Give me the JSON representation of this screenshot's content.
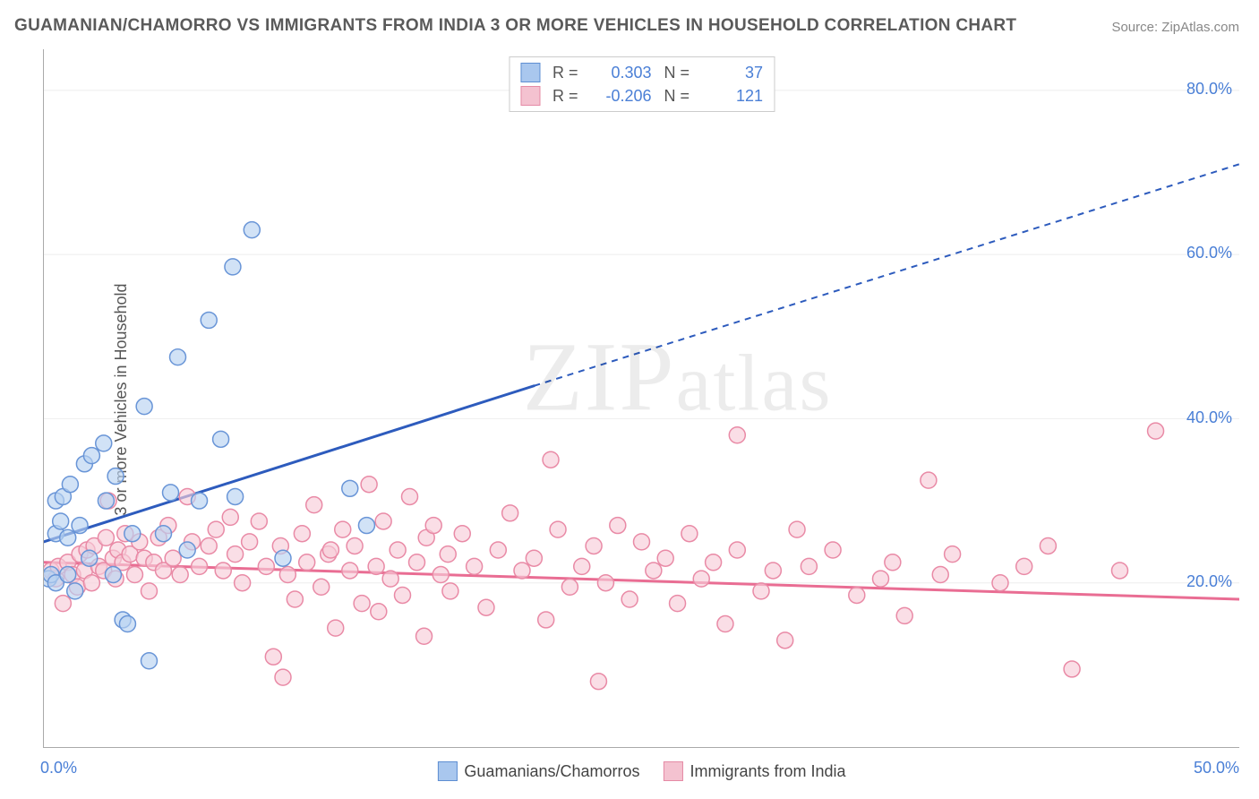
{
  "title": "GUAMANIAN/CHAMORRO VS IMMIGRANTS FROM INDIA 3 OR MORE VEHICLES IN HOUSEHOLD CORRELATION CHART",
  "source_label": "Source: ZipAtlas.com",
  "y_axis_label": "3 or more Vehicles in Household",
  "watermark": "ZIPatlas",
  "chart": {
    "type": "scatter",
    "background_color": "#ffffff",
    "grid_color": "#eeeeee",
    "axis_color": "#aaaaaa",
    "tick_color": "#888888",
    "xlim": [
      0,
      50
    ],
    "ylim": [
      0,
      85
    ],
    "x_ticks": [
      0,
      5,
      10,
      15,
      20,
      25,
      30,
      35,
      40,
      45,
      50
    ],
    "x_tick_labels": {
      "0": "0.0%",
      "50": "50.0%"
    },
    "y_ticks": [
      20,
      40,
      60,
      80
    ],
    "y_tick_labels": {
      "20": "20.0%",
      "40": "40.0%",
      "60": "60.0%",
      "80": "80.0%"
    },
    "y_tick_label_color": "#4a7fd6",
    "x_tick_label_color": "#4a7fd6",
    "label_fontsize": 18,
    "title_fontsize": 19,
    "marker_radius": 9,
    "marker_stroke_width": 1.5,
    "line_width": 3,
    "dash_pattern": "7 6"
  },
  "series": [
    {
      "key": "blue",
      "label": "Guamanians/Chamorros",
      "R": "0.303",
      "N": "37",
      "fill": "#b9d2f1",
      "stroke": "#6995d7",
      "line_color": "#2d5bbd",
      "swatch_fill": "#a9c7ee",
      "swatch_border": "#5e8ed2",
      "regression": {
        "x1": 0,
        "y1": 25,
        "x2_solid": 20.5,
        "y2_solid": 44,
        "x2_dash": 50,
        "y2_dash": 71
      },
      "points": [
        [
          0.2,
          20.5
        ],
        [
          0.3,
          21.0
        ],
        [
          0.5,
          26.0
        ],
        [
          0.5,
          30.0
        ],
        [
          0.5,
          20.0
        ],
        [
          0.7,
          27.5
        ],
        [
          0.8,
          30.5
        ],
        [
          1.0,
          21.0
        ],
        [
          1.0,
          25.5
        ],
        [
          1.1,
          32.0
        ],
        [
          1.3,
          19.0
        ],
        [
          1.5,
          27.0
        ],
        [
          1.7,
          34.5
        ],
        [
          1.9,
          23.0
        ],
        [
          2.0,
          35.5
        ],
        [
          2.5,
          37.0
        ],
        [
          2.6,
          30.0
        ],
        [
          2.9,
          21.0
        ],
        [
          3.0,
          33.0
        ],
        [
          3.3,
          15.5
        ],
        [
          3.5,
          15.0
        ],
        [
          3.7,
          26.0
        ],
        [
          4.2,
          41.5
        ],
        [
          4.4,
          10.5
        ],
        [
          5.0,
          26.0
        ],
        [
          5.3,
          31.0
        ],
        [
          5.6,
          47.5
        ],
        [
          6.0,
          24.0
        ],
        [
          6.5,
          30.0
        ],
        [
          6.9,
          52.0
        ],
        [
          7.4,
          37.5
        ],
        [
          7.9,
          58.5
        ],
        [
          8.0,
          30.5
        ],
        [
          8.7,
          63.0
        ],
        [
          10.0,
          23.0
        ],
        [
          12.8,
          31.5
        ],
        [
          13.5,
          27.0
        ]
      ]
    },
    {
      "key": "pink",
      "label": "Immigrants from India",
      "R": "-0.206",
      "N": "121",
      "fill": "#f7cdd8",
      "stroke": "#e98aa6",
      "line_color": "#e96d93",
      "swatch_fill": "#f4c2d0",
      "swatch_border": "#e58aa5",
      "regression": {
        "x1": 0,
        "y1": 22.5,
        "x2_solid": 50,
        "y2_solid": 18,
        "x2_dash": 50,
        "y2_dash": 18
      },
      "points": [
        [
          0.3,
          21.5
        ],
        [
          0.5,
          20.5
        ],
        [
          0.6,
          22.0
        ],
        [
          0.8,
          17.5
        ],
        [
          1.0,
          22.5
        ],
        [
          1.2,
          21.0
        ],
        [
          1.4,
          19.5
        ],
        [
          1.5,
          23.5
        ],
        [
          1.7,
          21.5
        ],
        [
          1.8,
          24.0
        ],
        [
          2.0,
          20.0
        ],
        [
          2.1,
          24.5
        ],
        [
          2.3,
          22.0
        ],
        [
          2.5,
          21.5
        ],
        [
          2.6,
          25.5
        ],
        [
          2.7,
          30.0
        ],
        [
          2.9,
          23.0
        ],
        [
          3.0,
          20.5
        ],
        [
          3.1,
          24.0
        ],
        [
          3.3,
          22.5
        ],
        [
          3.4,
          26.0
        ],
        [
          3.6,
          23.5
        ],
        [
          3.8,
          21.0
        ],
        [
          4.0,
          25.0
        ],
        [
          4.2,
          23.0
        ],
        [
          4.4,
          19.0
        ],
        [
          4.6,
          22.5
        ],
        [
          4.8,
          25.5
        ],
        [
          5.0,
          21.5
        ],
        [
          5.2,
          27.0
        ],
        [
          5.4,
          23.0
        ],
        [
          5.7,
          21.0
        ],
        [
          6.0,
          30.5
        ],
        [
          6.2,
          25.0
        ],
        [
          6.5,
          22.0
        ],
        [
          6.9,
          24.5
        ],
        [
          7.2,
          26.5
        ],
        [
          7.5,
          21.5
        ],
        [
          7.8,
          28.0
        ],
        [
          8.0,
          23.5
        ],
        [
          8.3,
          20.0
        ],
        [
          8.6,
          25.0
        ],
        [
          9.0,
          27.5
        ],
        [
          9.3,
          22.0
        ],
        [
          9.6,
          11.0
        ],
        [
          9.9,
          24.5
        ],
        [
          10.0,
          8.5
        ],
        [
          10.2,
          21.0
        ],
        [
          10.5,
          18.0
        ],
        [
          10.8,
          26.0
        ],
        [
          11.0,
          22.5
        ],
        [
          11.3,
          29.5
        ],
        [
          11.6,
          19.5
        ],
        [
          11.9,
          23.5
        ],
        [
          12.0,
          24.0
        ],
        [
          12.2,
          14.5
        ],
        [
          12.5,
          26.5
        ],
        [
          12.8,
          21.5
        ],
        [
          13.0,
          24.5
        ],
        [
          13.3,
          17.5
        ],
        [
          13.6,
          32.0
        ],
        [
          13.9,
          22.0
        ],
        [
          14.0,
          16.5
        ],
        [
          14.2,
          27.5
        ],
        [
          14.5,
          20.5
        ],
        [
          14.8,
          24.0
        ],
        [
          15.0,
          18.5
        ],
        [
          15.3,
          30.5
        ],
        [
          15.6,
          22.5
        ],
        [
          15.9,
          13.5
        ],
        [
          16.0,
          25.5
        ],
        [
          16.3,
          27.0
        ],
        [
          16.6,
          21.0
        ],
        [
          16.9,
          23.5
        ],
        [
          17.0,
          19.0
        ],
        [
          17.5,
          26.0
        ],
        [
          18.0,
          22.0
        ],
        [
          18.5,
          17.0
        ],
        [
          19.0,
          24.0
        ],
        [
          19.5,
          28.5
        ],
        [
          20.0,
          21.5
        ],
        [
          20.5,
          23.0
        ],
        [
          21.0,
          15.5
        ],
        [
          21.2,
          35.0
        ],
        [
          21.5,
          26.5
        ],
        [
          22.0,
          19.5
        ],
        [
          22.5,
          22.0
        ],
        [
          23.0,
          24.5
        ],
        [
          23.2,
          8.0
        ],
        [
          23.5,
          20.0
        ],
        [
          24.0,
          27.0
        ],
        [
          24.5,
          18.0
        ],
        [
          25.0,
          25.0
        ],
        [
          25.5,
          21.5
        ],
        [
          26.0,
          23.0
        ],
        [
          26.5,
          17.5
        ],
        [
          27.0,
          26.0
        ],
        [
          27.5,
          20.5
        ],
        [
          28.0,
          22.5
        ],
        [
          28.5,
          15.0
        ],
        [
          29.0,
          38.0
        ],
        [
          29.0,
          24.0
        ],
        [
          30.0,
          19.0
        ],
        [
          30.5,
          21.5
        ],
        [
          31.0,
          13.0
        ],
        [
          31.5,
          26.5
        ],
        [
          32.0,
          22.0
        ],
        [
          33.0,
          24.0
        ],
        [
          34.0,
          18.5
        ],
        [
          35.0,
          20.5
        ],
        [
          35.5,
          22.5
        ],
        [
          36.0,
          16.0
        ],
        [
          37.0,
          32.5
        ],
        [
          37.5,
          21.0
        ],
        [
          38.0,
          23.5
        ],
        [
          40.0,
          20.0
        ],
        [
          41.0,
          22.0
        ],
        [
          42.0,
          24.5
        ],
        [
          43.0,
          9.5
        ],
        [
          45.0,
          21.5
        ],
        [
          46.5,
          38.5
        ]
      ]
    }
  ],
  "legend_top": {
    "r_label": "R =",
    "n_label": "N ="
  }
}
